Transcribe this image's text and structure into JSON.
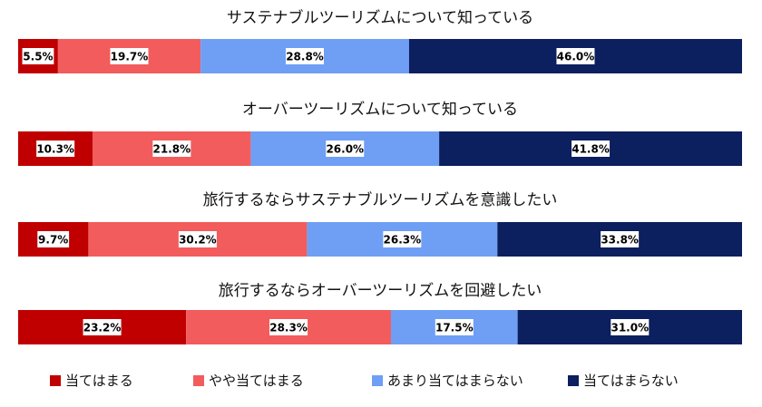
{
  "chart_data": {
    "type": "stacked-bar-horizontal",
    "title": "",
    "unit": "%",
    "series": [
      {
        "name": "当てはまる",
        "color": "#c00000"
      },
      {
        "name": "やや当てはまる",
        "color": "#f25c5c"
      },
      {
        "name": "あまり当てはまらない",
        "color": "#6f9ef5"
      },
      {
        "name": "当てはまらない",
        "color": "#0c1f5e"
      }
    ],
    "rows": [
      {
        "label": "サステナブルツーリズムについて知っている",
        "values": [
          5.5,
          19.7,
          28.8,
          46.0
        ],
        "value_labels": [
          "5.5%",
          "19.7%",
          "28.8%",
          "46.0%"
        ]
      },
      {
        "label": "オーバーツーリズムについて知っている",
        "values": [
          10.3,
          21.8,
          26.0,
          41.8
        ],
        "value_labels": [
          "10.3%",
          "21.8%",
          "26.0%",
          "41.8%"
        ]
      },
      {
        "label": "旅行するならサステナブルツーリズムを意識したい",
        "values": [
          9.7,
          30.2,
          26.3,
          33.8
        ],
        "value_labels": [
          "9.7%",
          "30.2%",
          "26.3%",
          "33.8%"
        ]
      },
      {
        "label": "旅行するならオーバーツーリズムを回避したい",
        "values": [
          23.2,
          28.3,
          17.5,
          31.0
        ],
        "value_labels": [
          "23.2%",
          "28.3%",
          "17.5%",
          "31.0%"
        ]
      }
    ],
    "legend_position": "bottom"
  }
}
